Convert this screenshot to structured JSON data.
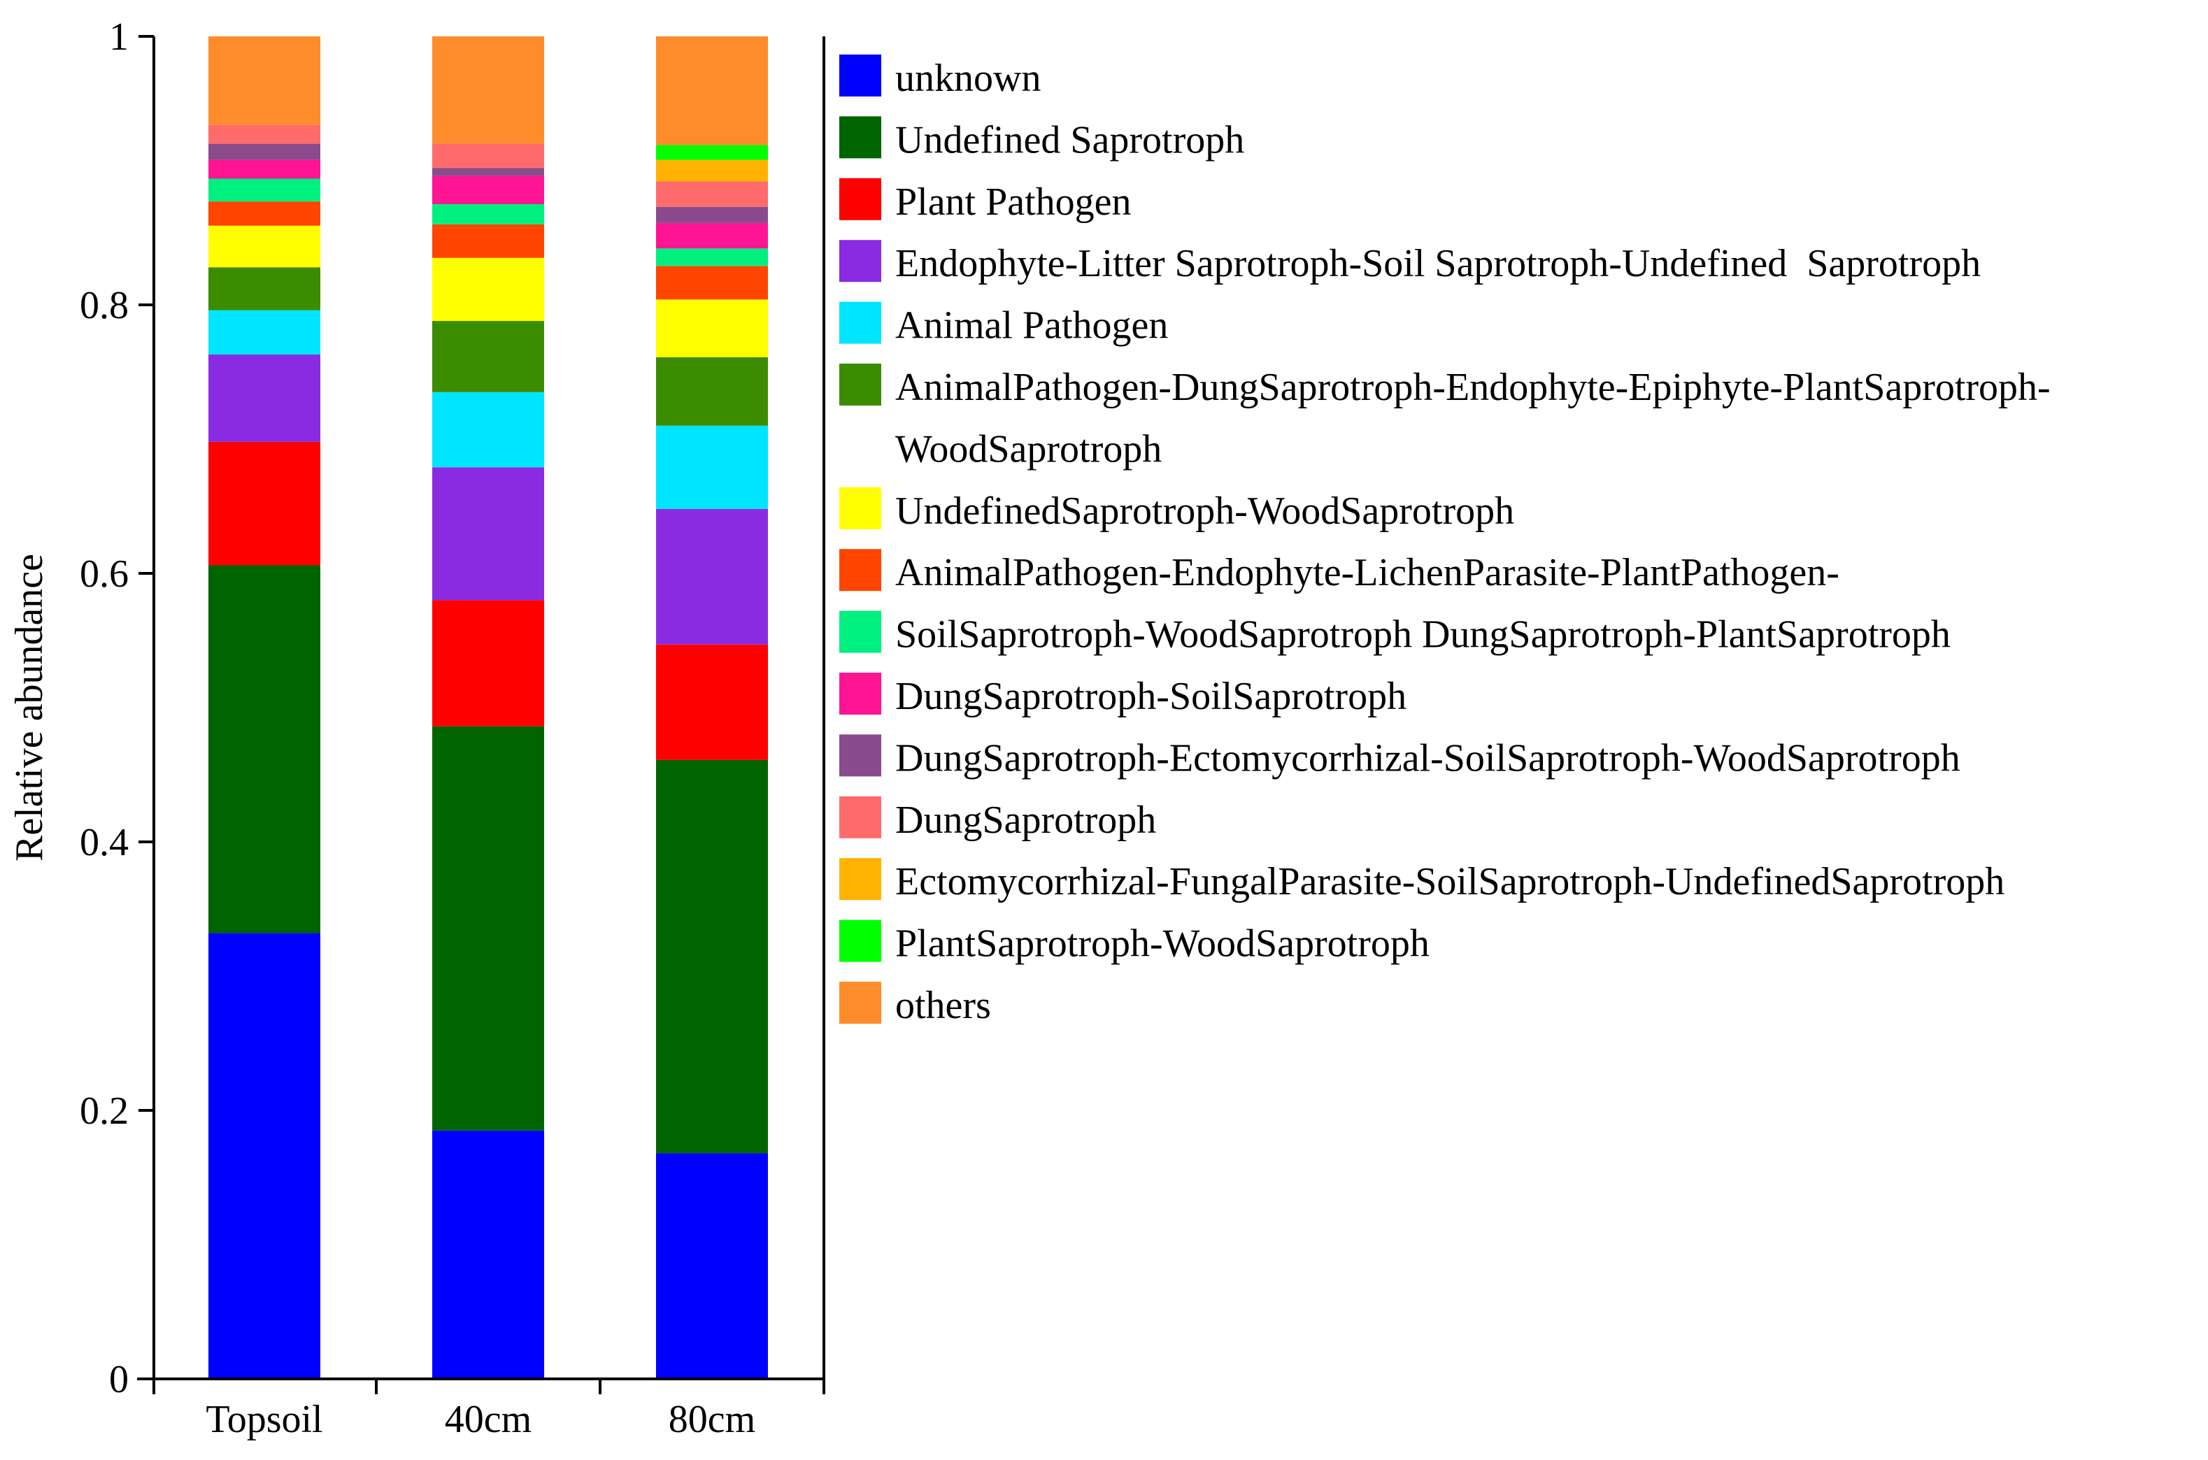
{
  "chart_data": {
    "type": "bar",
    "stacked": true,
    "categories": [
      "Topsoil",
      "40cm",
      "80cm"
    ],
    "ylabel": "Relative abundance",
    "xlabel": "",
    "ylim": [
      0,
      1
    ],
    "yticks": [
      "0",
      "0.2",
      "0.4",
      "0.6",
      "0.8",
      "1"
    ],
    "legend_position": "right",
    "series": [
      {
        "name": "unknown",
        "color": "#0000FF",
        "values": [
          0.332,
          0.185,
          0.168
        ]
      },
      {
        "name": "Undefined Saprotroph",
        "color": "#006400",
        "values": [
          0.274,
          0.301,
          0.293
        ]
      },
      {
        "name": "Plant Pathogen",
        "color": "#FF0000",
        "values": [
          0.092,
          0.094,
          0.086
        ]
      },
      {
        "name": "Endophyte-Litter Saprotroph-Soil Saprotroph-Undefined  Saprotroph",
        "color": "#8A2BE2",
        "values": [
          0.065,
          0.099,
          0.101
        ]
      },
      {
        "name": "Animal Pathogen",
        "color": "#00E5FF",
        "values": [
          0.033,
          0.056,
          0.062
        ]
      },
      {
        "name": "AnimalPathogen-DungSaprotroph-Endophyte-Epiphyte-PlantSaprotroph-WoodSaprotroph",
        "legend_lines": [
          "AnimalPathogen-DungSaprotroph-Endophyte-Epiphyte-PlantSaprotroph-",
          "WoodSaprotroph"
        ],
        "color": "#3C8C00",
        "values": [
          0.032,
          0.053,
          0.051
        ]
      },
      {
        "name": "UndefinedSaprotroph-WoodSaprotroph",
        "color": "#FFFF00",
        "values": [
          0.031,
          0.047,
          0.043
        ]
      },
      {
        "name": "AnimalPathogen-Endophyte-LichenParasite-PlantPathogen-",
        "color": "#FF4500",
        "values": [
          0.018,
          0.025,
          0.025
        ]
      },
      {
        "name": "SoilSaprotroph-WoodSaprotroph DungSaprotroph-PlantSaprotroph",
        "color": "#00F080",
        "values": [
          0.017,
          0.015,
          0.013
        ]
      },
      {
        "name": "DungSaprotroph-SoilSaprotroph",
        "color": "#FF1493",
        "values": [
          0.014,
          0.021,
          0.019
        ]
      },
      {
        "name": "DungSaprotroph-Ectomycorrhizal-SoilSaprotroph-WoodSaprotroph",
        "color": "#8B4A8B",
        "values": [
          0.012,
          0.006,
          0.012
        ]
      },
      {
        "name": "DungSaprotroph",
        "color": "#FF6B6B",
        "values": [
          0.014,
          0.018,
          0.019
        ]
      },
      {
        "name": "Ectomycorrhizal-FungalParasite-SoilSaprotroph-UndefinedSaprotroph",
        "color": "#FFB300",
        "values": [
          0,
          0,
          0.016
        ]
      },
      {
        "name": "PlantSaprotroph-WoodSaprotroph",
        "color": "#00FF00",
        "values": [
          0,
          0,
          0.011
        ]
      },
      {
        "name": "others",
        "color": "#FF8C2A",
        "values": [
          0.066,
          0.08,
          0.081
        ]
      }
    ]
  }
}
